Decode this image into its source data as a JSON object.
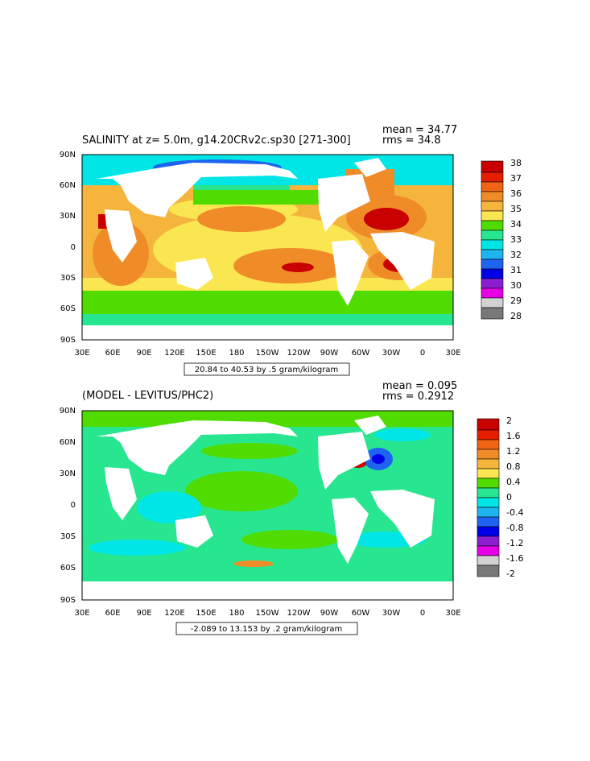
{
  "panels": [
    {
      "id": "top",
      "title": "SALINITY at z=    5.0m, g14.20CRv2c.sp30  [271-300]",
      "mean_text": "mean = 34.77",
      "rms_text": "rms = 34.8",
      "range_text": "20.84 to 40.53 by .5 gram/kilogram",
      "lat_labels": [
        "90N",
        "60N",
        "30N",
        "0",
        "30S",
        "60S",
        "90S"
      ],
      "lon_labels": [
        "30E",
        "60E",
        "90E",
        "120E",
        "150E",
        "180",
        "150W",
        "120W",
        "90W",
        "60W",
        "30W",
        "0",
        "30E"
      ],
      "colorbar": {
        "labels": [
          "38",
          "37",
          "36",
          "35",
          "34",
          "33",
          "32",
          "31",
          "30",
          "29",
          "28"
        ],
        "colors": [
          "#c80000",
          "#e61e00",
          "#f06414",
          "#f08c28",
          "#f5b43c",
          "#fae650",
          "#50dc00",
          "#28e690",
          "#00e6e6",
          "#1eb4f0",
          "#1e64f0",
          "#0000e6",
          "#8c1ed2",
          "#e600e6",
          "#d2d2d2",
          "#787878"
        ]
      },
      "field_colors": {
        "land": "#ffffff",
        "deep_high": "#c80000",
        "high": "#f06414",
        "mid_high": "#f08c28",
        "mid": "#f5b43c",
        "low_mid": "#fae650",
        "low": "#50dc00",
        "lower": "#28e690",
        "cyan": "#00e6e6",
        "blue": "#1e64f0",
        "dark_blue": "#0000e6"
      }
    },
    {
      "id": "bottom",
      "title": "(MODEL - LEVITUS/PHC2)",
      "mean_text": "mean = 0.095",
      "rms_text": "rms = 0.2912",
      "range_text": "-2.089 to 13.153 by .2 gram/kilogram",
      "lat_labels": [
        "90N",
        "60N",
        "30N",
        "0",
        "30S",
        "60S",
        "90S"
      ],
      "lon_labels": [
        "30E",
        "60E",
        "90E",
        "120E",
        "150E",
        "180",
        "150W",
        "120W",
        "90W",
        "60W",
        "30W",
        "0",
        "30E"
      ],
      "colorbar": {
        "labels": [
          "2",
          "1.6",
          "1.2",
          "0.8",
          "0.4",
          "0",
          "-0.4",
          "-0.8",
          "-1.2",
          "-1.6",
          "-2"
        ],
        "colors": [
          "#c80000",
          "#e61e00",
          "#f06414",
          "#f08c28",
          "#f5b43c",
          "#fae650",
          "#50dc00",
          "#28e690",
          "#00e6e6",
          "#1eb4f0",
          "#1e64f0",
          "#0000e6",
          "#8c1ed2",
          "#e600e6",
          "#d2d2d2",
          "#787878"
        ]
      },
      "field_colors": {
        "land": "#ffffff",
        "main": "#28e690",
        "alt": "#50dc00",
        "cyan": "#00e6e6",
        "orange": "#f08c28",
        "blue": "#1e64f0",
        "dark_blue": "#0000e6",
        "red": "#c80000"
      }
    }
  ]
}
